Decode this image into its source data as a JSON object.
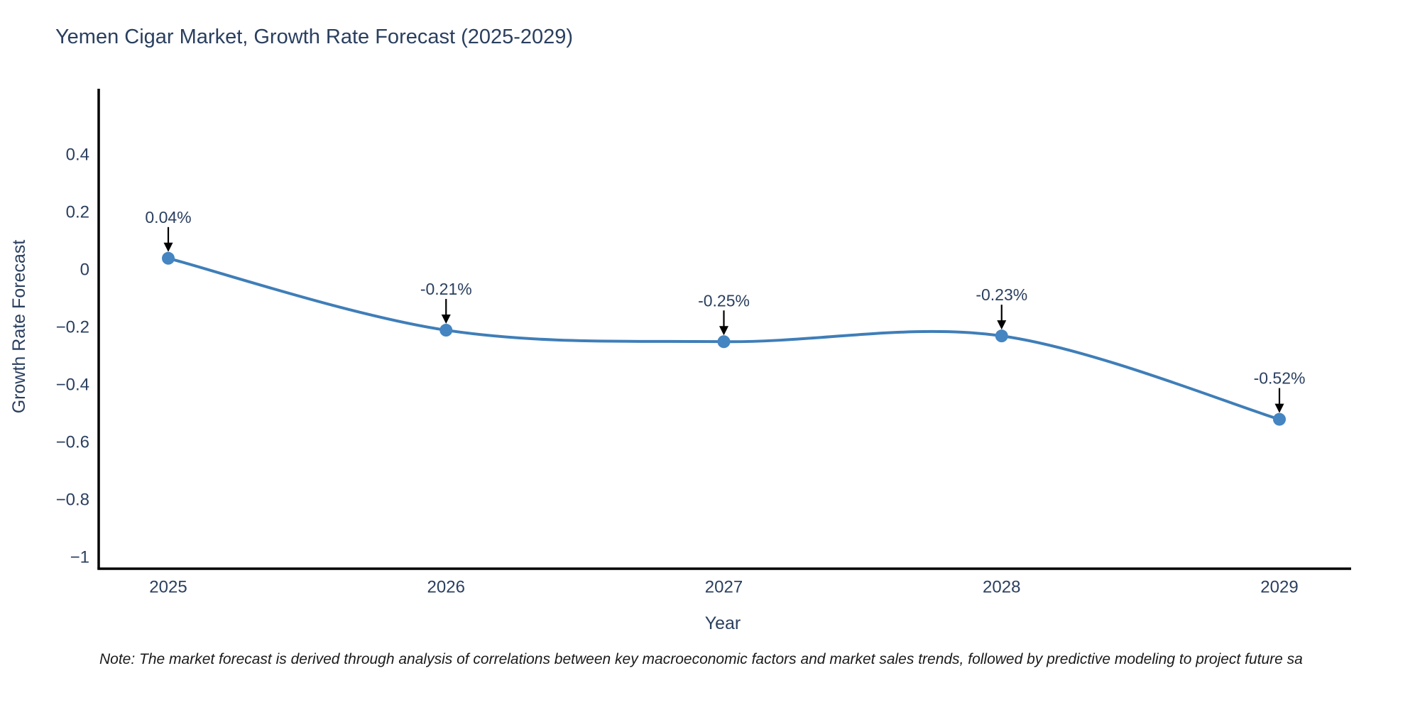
{
  "chart_data": {
    "type": "line",
    "line_shape": "spline",
    "title": "Yemen Cigar Market, Growth Rate Forecast (2025-2029)",
    "xlabel": "Year",
    "ylabel": "Growth Rate Forecast",
    "x": [
      2025,
      2026,
      2027,
      2028,
      2029
    ],
    "y": [
      0.04,
      -0.21,
      -0.25,
      -0.23,
      -0.52
    ],
    "point_labels": [
      "0.04%",
      "-0.21%",
      "-0.25%",
      "-0.23%",
      "-0.52%"
    ],
    "x_tick_labels": [
      "2025",
      "2026",
      "2027",
      "2028",
      "2029"
    ],
    "y_ticks": [
      0.4,
      0.2,
      0,
      -0.2,
      -0.4,
      -0.6,
      -0.8,
      -1
    ],
    "y_tick_labels": [
      "0.4",
      "0.2",
      "0",
      "−0.2",
      "−0.4",
      "−0.6",
      "−0.8",
      "−1"
    ],
    "ylim": [
      -1.05,
      0.66
    ],
    "grid": false,
    "legend": "none",
    "annotations_style": "arrow-down-to-point",
    "colors": {
      "line": "#3f7eb8",
      "marker": "#4585c1",
      "axis": "#000000",
      "text": "#2a3f5f",
      "annotation_arrow": "#000000",
      "note_text": "#1a1a1a",
      "background": "#ffffff"
    }
  },
  "footnote": "Note: The market forecast is derived through analysis of correlations between key macroeconomic factors and market sales trends, followed by predictive modeling to project future sa"
}
